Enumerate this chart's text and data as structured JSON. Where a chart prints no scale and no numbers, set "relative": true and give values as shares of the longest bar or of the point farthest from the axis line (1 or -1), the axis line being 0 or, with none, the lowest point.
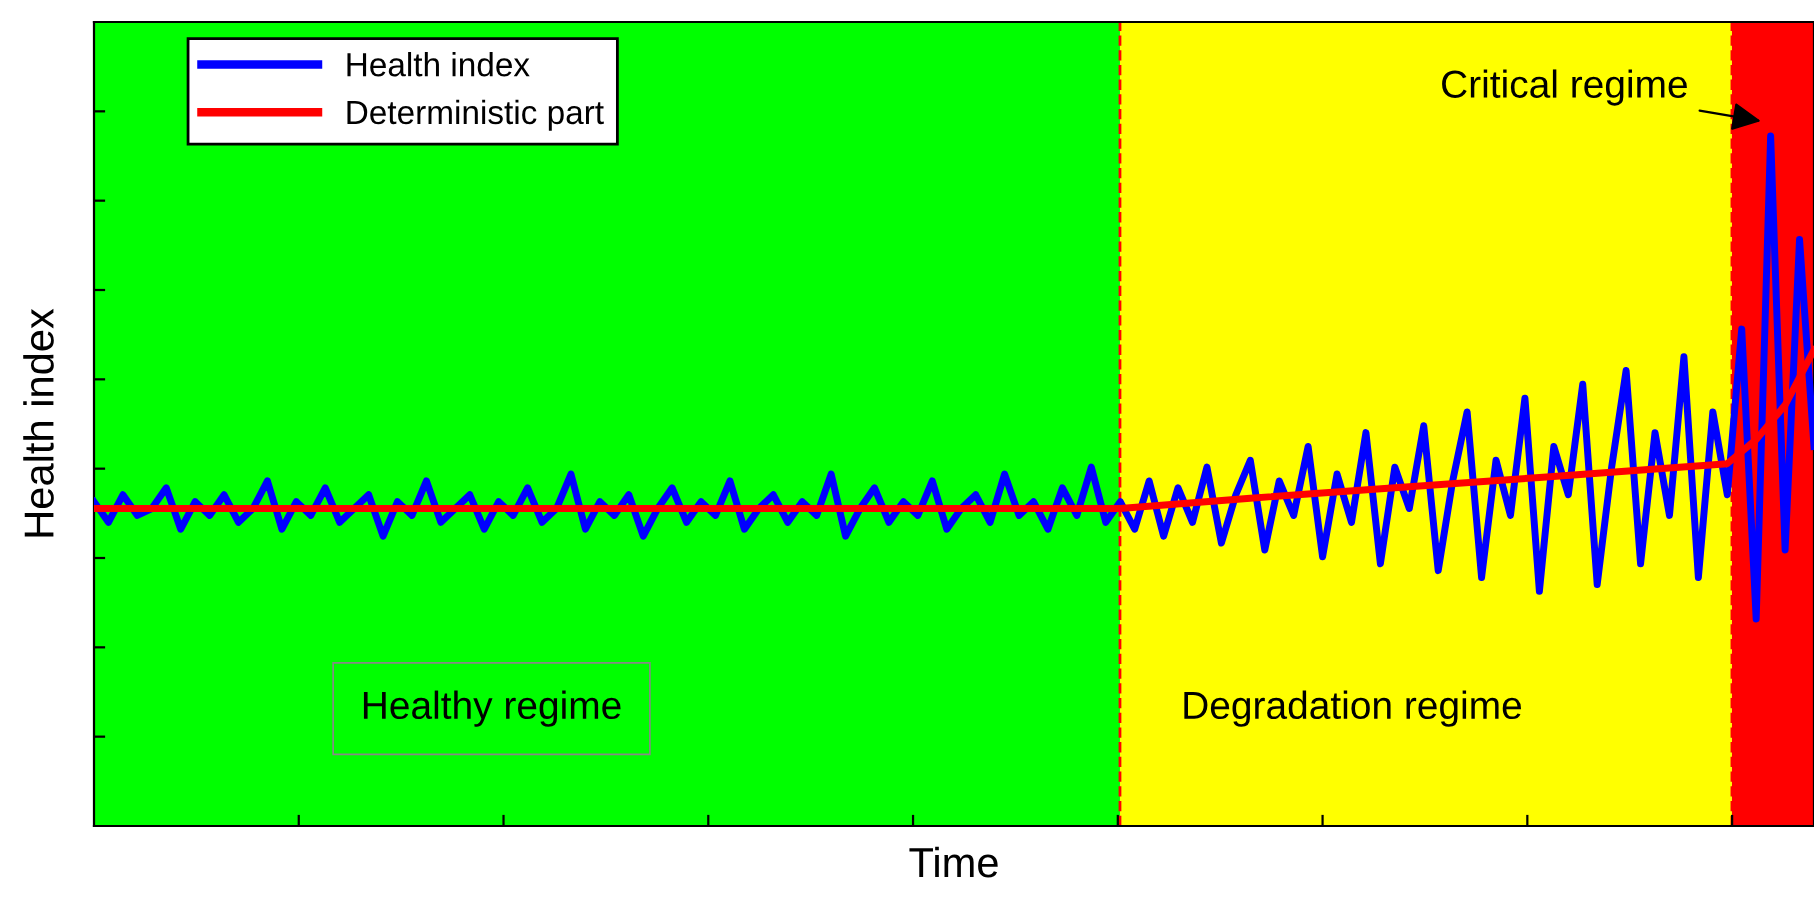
{
  "chart_data": {
    "type": "line",
    "relative": true,
    "xlabel": "Time",
    "ylabel": "Health index",
    "categories": [
      null,
      null,
      null,
      null,
      null,
      null,
      null,
      null,
      null,
      null,
      null,
      null,
      null,
      null,
      null,
      null,
      null,
      null,
      null,
      null,
      null,
      null,
      null,
      null,
      null,
      null,
      null,
      null,
      null,
      null,
      null,
      null,
      null,
      null,
      null,
      null,
      null,
      null,
      null,
      null,
      null,
      null,
      null,
      null,
      null,
      null,
      null,
      null,
      null,
      null,
      null,
      null,
      null,
      null,
      null,
      null,
      null,
      null,
      null,
      null,
      null,
      null,
      null,
      null,
      null,
      null,
      null,
      null,
      null,
      null,
      null,
      null,
      null,
      null,
      null,
      null,
      null,
      null,
      null,
      null,
      null,
      null,
      null,
      null,
      null,
      null,
      null,
      null,
      null,
      null,
      null,
      null,
      null,
      null,
      null,
      null,
      null,
      null,
      null,
      null,
      null,
      null,
      null,
      null,
      null,
      null,
      null,
      null,
      null,
      null,
      null,
      null,
      null,
      null,
      null,
      null,
      null,
      null,
      null,
      null
    ],
    "series": [
      {
        "name": "Health index",
        "color": "#0000ff",
        "values": [
          0.47,
          0.44,
          0.48,
          0.45,
          0.46,
          0.49,
          0.43,
          0.47,
          0.45,
          0.48,
          0.44,
          0.46,
          0.5,
          0.43,
          0.47,
          0.45,
          0.49,
          0.44,
          0.46,
          0.48,
          0.42,
          0.47,
          0.45,
          0.5,
          0.44,
          0.46,
          0.48,
          0.43,
          0.47,
          0.45,
          0.49,
          0.44,
          0.46,
          0.51,
          0.43,
          0.47,
          0.45,
          0.48,
          0.42,
          0.46,
          0.49,
          0.44,
          0.47,
          0.45,
          0.5,
          0.43,
          0.46,
          0.48,
          0.44,
          0.47,
          0.45,
          0.51,
          0.42,
          0.46,
          0.49,
          0.44,
          0.47,
          0.45,
          0.5,
          0.43,
          0.46,
          0.48,
          0.44,
          0.51,
          0.45,
          0.47,
          0.43,
          0.49,
          0.45,
          0.52,
          0.44,
          0.47,
          0.43,
          0.5,
          0.42,
          0.49,
          0.44,
          0.52,
          0.41,
          0.48,
          0.53,
          0.4,
          0.5,
          0.45,
          0.55,
          0.39,
          0.51,
          0.44,
          0.57,
          0.38,
          0.52,
          0.46,
          0.58,
          0.37,
          0.5,
          0.6,
          0.36,
          0.53,
          0.45,
          0.62,
          0.34,
          0.55,
          0.48,
          0.64,
          0.35,
          0.52,
          0.66,
          0.38,
          0.57,
          0.45,
          0.68,
          0.36,
          0.6,
          0.48,
          0.72,
          0.3,
          1.0,
          0.4,
          0.85,
          0.55
        ]
      },
      {
        "name": "Deterministic part",
        "color": "#ff0000",
        "values": [
          0.46,
          null,
          null,
          null,
          null,
          null,
          null,
          null,
          null,
          null,
          null,
          null,
          null,
          null,
          null,
          null,
          null,
          null,
          null,
          null,
          null,
          null,
          null,
          null,
          null,
          null,
          null,
          null,
          null,
          null,
          null,
          null,
          null,
          null,
          null,
          null,
          null,
          null,
          null,
          null,
          null,
          null,
          null,
          null,
          null,
          null,
          null,
          null,
          null,
          null,
          null,
          null,
          null,
          null,
          null,
          null,
          null,
          null,
          null,
          null,
          null,
          null,
          null,
          null,
          null,
          null,
          null,
          null,
          null,
          null,
          null,
          0.46,
          null,
          null,
          null,
          null,
          null,
          null,
          null,
          null,
          0.475,
          null,
          null,
          null,
          null,
          null,
          null,
          null,
          null,
          null,
          0.49,
          null,
          null,
          null,
          null,
          null,
          null,
          null,
          null,
          null,
          0.505,
          null,
          null,
          null,
          null,
          null,
          null,
          null,
          null,
          null,
          null,
          null,
          null,
          0.525,
          null,
          0.56,
          null,
          0.61,
          null,
          0.69
        ]
      }
    ],
    "annotations": [
      "Healthy regime",
      "Degradation regime",
      "Critical regime"
    ],
    "legend": "top left",
    "grid": false
  }
}
